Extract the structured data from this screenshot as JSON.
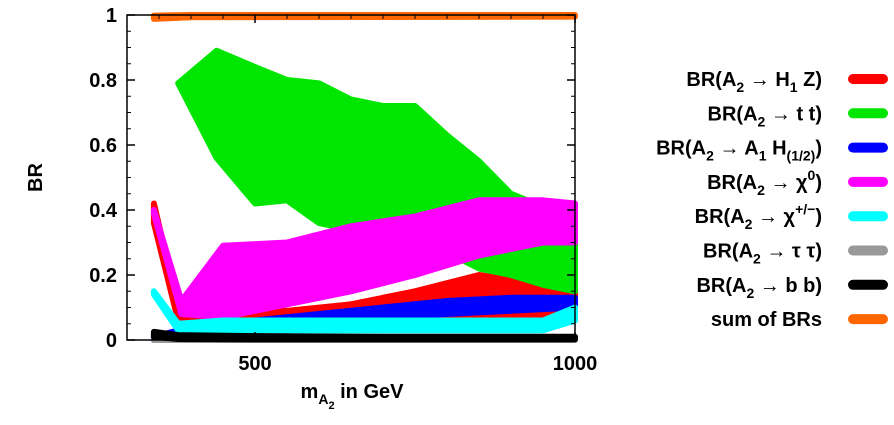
{
  "chart_data": {
    "type": "area",
    "xlabel": {
      "main": "m",
      "sub": "A2",
      "rest": " in GeV"
    },
    "ylabel": "BR",
    "xlim": [
      300,
      1000
    ],
    "ylim": [
      0,
      1
    ],
    "xticks": [
      500,
      1000
    ],
    "yticks": [
      0,
      0.2,
      0.4,
      0.6,
      0.8,
      1
    ],
    "grid": false,
    "legend_position": "right",
    "series": [
      {
        "name": "BR(A2 → H1 Z)",
        "label_parts": [
          [
            "BR(A",
            ""
          ],
          [
            "2",
            "sub"
          ],
          [
            " → H",
            ""
          ],
          [
            "1",
            "sub"
          ],
          [
            " Z)",
            ""
          ]
        ],
        "color": "#ff0000",
        "x": [
          342,
          380,
          450,
          550,
          650,
          750,
          850,
          950,
          1000
        ],
        "lower": [
          0.36,
          0.06,
          0.03,
          0.03,
          0.04,
          0.05,
          0.06,
          0.06,
          0.07
        ],
        "upper": [
          0.42,
          0.1,
          0.08,
          0.09,
          0.11,
          0.15,
          0.2,
          0.17,
          0.16
        ]
      },
      {
        "name": "BR(A2 → t t)",
        "label_parts": [
          [
            "BR(A",
            ""
          ],
          [
            "2",
            "sub"
          ],
          [
            " → t t)",
            ""
          ]
        ],
        "color": "#00e600",
        "x": [
          380,
          440,
          500,
          550,
          600,
          650,
          700,
          750,
          800,
          850,
          900,
          950,
          1000
        ],
        "lower": [
          0.79,
          0.56,
          0.42,
          0.43,
          0.36,
          0.34,
          0.33,
          0.31,
          0.27,
          0.22,
          0.2,
          0.17,
          0.15
        ],
        "upper": [
          0.79,
          0.89,
          0.84,
          0.8,
          0.79,
          0.74,
          0.72,
          0.72,
          0.63,
          0.55,
          0.45,
          0.41,
          0.4
        ]
      },
      {
        "name": "BR(A2 → A1 H(1/2))",
        "label_parts": [
          [
            "BR(A",
            ""
          ],
          [
            "2",
            "sub"
          ],
          [
            " → A",
            ""
          ],
          [
            "1",
            "sub"
          ],
          [
            " H",
            ""
          ],
          [
            "(1/2)",
            "sub"
          ],
          [
            ")",
            ""
          ]
        ],
        "color": "#0000ff",
        "x": [
          342,
          400,
          500,
          600,
          700,
          800,
          900,
          1000
        ],
        "lower": [
          0.0,
          0.03,
          0.04,
          0.05,
          0.07,
          0.08,
          0.09,
          0.1
        ],
        "upper": [
          0.01,
          0.04,
          0.06,
          0.08,
          0.1,
          0.12,
          0.13,
          0.13
        ]
      },
      {
        "name": "BR(A2 → χ0)",
        "label_parts": [
          [
            "BR(A",
            ""
          ],
          [
            "2",
            "sub"
          ],
          [
            " → χ",
            ""
          ],
          [
            "0",
            "sup"
          ],
          [
            ")",
            ""
          ]
        ],
        "color": "#ff00ff",
        "x": [
          342,
          385,
          450,
          550,
          650,
          750,
          850,
          950,
          1000
        ],
        "lower": [
          0.39,
          0.08,
          0.07,
          0.11,
          0.15,
          0.2,
          0.26,
          0.3,
          0.3
        ],
        "upper": [
          0.4,
          0.12,
          0.29,
          0.3,
          0.35,
          0.38,
          0.43,
          0.43,
          0.42
        ]
      },
      {
        "name": "BR(A2 → χ+/-)",
        "label_parts": [
          [
            "BR(A",
            ""
          ],
          [
            "2",
            "sub"
          ],
          [
            " → χ",
            ""
          ],
          [
            "+/−",
            "sup"
          ],
          [
            ")",
            ""
          ]
        ],
        "color": "#00ffff",
        "x": [
          342,
          380,
          450,
          550,
          650,
          750,
          850,
          950,
          1000
        ],
        "lower": [
          0.14,
          0.03,
          0.03,
          0.03,
          0.03,
          0.03,
          0.03,
          0.03,
          0.06
        ],
        "upper": [
          0.15,
          0.05,
          0.06,
          0.06,
          0.06,
          0.06,
          0.06,
          0.06,
          0.1
        ]
      },
      {
        "name": "BR(A2 → τ τ)",
        "label_parts": [
          [
            "BR(A",
            ""
          ],
          [
            "2",
            "sub"
          ],
          [
            " → τ τ)",
            ""
          ]
        ],
        "color": "#999999",
        "x": [
          342,
          1000
        ],
        "lower": [
          0.0,
          0.0
        ],
        "upper": [
          0.005,
          0.005
        ]
      },
      {
        "name": "BR(A2 → b b)",
        "label_parts": [
          [
            "BR(A",
            ""
          ],
          [
            "2",
            "sub"
          ],
          [
            " → b b)",
            ""
          ]
        ],
        "color": "#000000",
        "x": [
          342,
          380,
          500,
          700,
          1000
        ],
        "lower": [
          0.01,
          0.003,
          0.002,
          0.002,
          0.002
        ],
        "upper": [
          0.025,
          0.015,
          0.012,
          0.01,
          0.01
        ]
      },
      {
        "name": "sum of BRs",
        "label_parts": [
          [
            "sum of BRs",
            ""
          ]
        ],
        "color": "#ff6600",
        "x": [
          342,
          400,
          1000
        ],
        "lower": [
          0.988,
          0.993,
          0.995
        ],
        "upper": [
          0.998,
          1.0,
          1.0
        ]
      }
    ]
  }
}
